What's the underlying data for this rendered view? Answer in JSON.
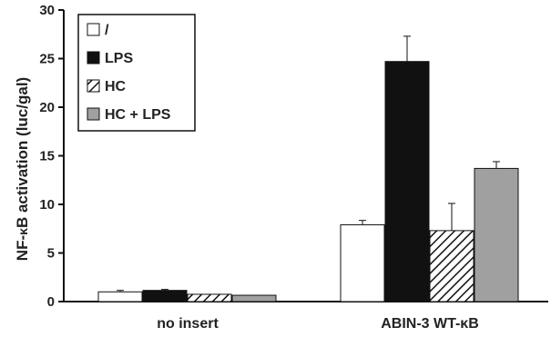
{
  "chart_data": {
    "type": "bar",
    "ylabel_parts": [
      "NF-",
      "κ",
      "B activation (luc/gal)"
    ],
    "ylim": [
      0,
      30
    ],
    "yticks": [
      0,
      5,
      10,
      15,
      20,
      25,
      30
    ],
    "categories": [
      "no insert",
      "ABIN-3 WT-κB"
    ],
    "series": [
      {
        "name": "/",
        "values": [
          1.0,
          7.9
        ],
        "errors": [
          0.15,
          0.45
        ],
        "fill": "#ffffff",
        "pattern": "none"
      },
      {
        "name": "LPS",
        "values": [
          1.15,
          24.7
        ],
        "errors": [
          0.1,
          2.6
        ],
        "fill": "#111111",
        "pattern": "none"
      },
      {
        "name": "HC",
        "values": [
          0.75,
          7.3
        ],
        "errors": [
          0.0,
          2.8
        ],
        "fill": "#ffffff",
        "pattern": "hatch"
      },
      {
        "name": "HC + LPS",
        "values": [
          0.65,
          13.7
        ],
        "errors": [
          0.0,
          0.7
        ],
        "fill": "#a0a0a0",
        "pattern": "none"
      }
    ],
    "legend_position": "top-left",
    "grid": false
  }
}
